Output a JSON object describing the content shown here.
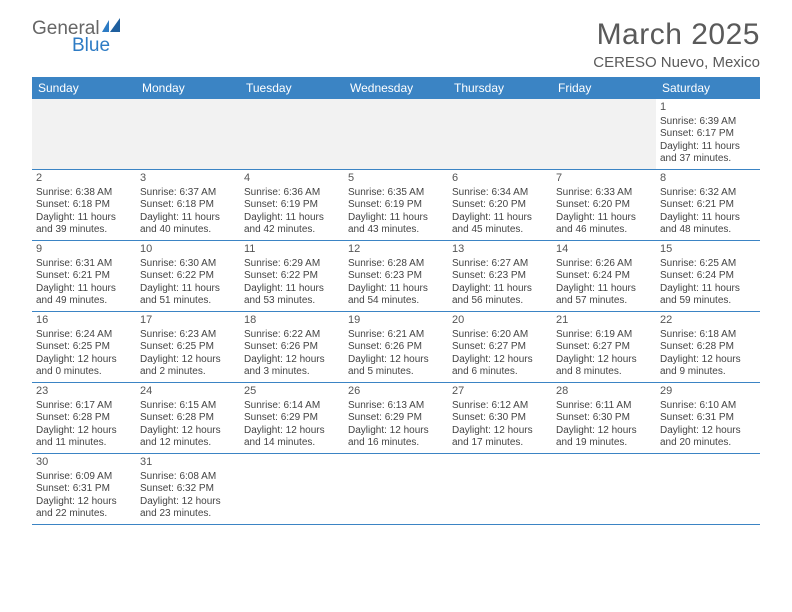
{
  "logo": {
    "line1": "General",
    "line2": "Blue"
  },
  "title": "March 2025",
  "location": "CERESO Nuevo, Mexico",
  "colors": {
    "header_bg": "#3b84c4",
    "header_text": "#ffffff",
    "border": "#3b84c4",
    "daynum": "#555555",
    "body_text": "#444444",
    "title_text": "#5a5a5a",
    "blank_gray": "#f2f2f2"
  },
  "weekdays": [
    "Sunday",
    "Monday",
    "Tuesday",
    "Wednesday",
    "Thursday",
    "Friday",
    "Saturday"
  ],
  "weeks": [
    [
      {
        "blank": true,
        "shade": "gray"
      },
      {
        "blank": true,
        "shade": "gray"
      },
      {
        "blank": true,
        "shade": "gray"
      },
      {
        "blank": true,
        "shade": "gray"
      },
      {
        "blank": true,
        "shade": "gray"
      },
      {
        "blank": true,
        "shade": "gray"
      },
      {
        "n": "1",
        "sunrise": "6:39 AM",
        "sunset": "6:17 PM",
        "daylight": "11 hours and 37 minutes."
      }
    ],
    [
      {
        "n": "2",
        "sunrise": "6:38 AM",
        "sunset": "6:18 PM",
        "daylight": "11 hours and 39 minutes."
      },
      {
        "n": "3",
        "sunrise": "6:37 AM",
        "sunset": "6:18 PM",
        "daylight": "11 hours and 40 minutes."
      },
      {
        "n": "4",
        "sunrise": "6:36 AM",
        "sunset": "6:19 PM",
        "daylight": "11 hours and 42 minutes."
      },
      {
        "n": "5",
        "sunrise": "6:35 AM",
        "sunset": "6:19 PM",
        "daylight": "11 hours and 43 minutes."
      },
      {
        "n": "6",
        "sunrise": "6:34 AM",
        "sunset": "6:20 PM",
        "daylight": "11 hours and 45 minutes."
      },
      {
        "n": "7",
        "sunrise": "6:33 AM",
        "sunset": "6:20 PM",
        "daylight": "11 hours and 46 minutes."
      },
      {
        "n": "8",
        "sunrise": "6:32 AM",
        "sunset": "6:21 PM",
        "daylight": "11 hours and 48 minutes."
      }
    ],
    [
      {
        "n": "9",
        "sunrise": "6:31 AM",
        "sunset": "6:21 PM",
        "daylight": "11 hours and 49 minutes."
      },
      {
        "n": "10",
        "sunrise": "6:30 AM",
        "sunset": "6:22 PM",
        "daylight": "11 hours and 51 minutes."
      },
      {
        "n": "11",
        "sunrise": "6:29 AM",
        "sunset": "6:22 PM",
        "daylight": "11 hours and 53 minutes."
      },
      {
        "n": "12",
        "sunrise": "6:28 AM",
        "sunset": "6:23 PM",
        "daylight": "11 hours and 54 minutes."
      },
      {
        "n": "13",
        "sunrise": "6:27 AM",
        "sunset": "6:23 PM",
        "daylight": "11 hours and 56 minutes."
      },
      {
        "n": "14",
        "sunrise": "6:26 AM",
        "sunset": "6:24 PM",
        "daylight": "11 hours and 57 minutes."
      },
      {
        "n": "15",
        "sunrise": "6:25 AM",
        "sunset": "6:24 PM",
        "daylight": "11 hours and 59 minutes."
      }
    ],
    [
      {
        "n": "16",
        "sunrise": "6:24 AM",
        "sunset": "6:25 PM",
        "daylight": "12 hours and 0 minutes."
      },
      {
        "n": "17",
        "sunrise": "6:23 AM",
        "sunset": "6:25 PM",
        "daylight": "12 hours and 2 minutes."
      },
      {
        "n": "18",
        "sunrise": "6:22 AM",
        "sunset": "6:26 PM",
        "daylight": "12 hours and 3 minutes."
      },
      {
        "n": "19",
        "sunrise": "6:21 AM",
        "sunset": "6:26 PM",
        "daylight": "12 hours and 5 minutes."
      },
      {
        "n": "20",
        "sunrise": "6:20 AM",
        "sunset": "6:27 PM",
        "daylight": "12 hours and 6 minutes."
      },
      {
        "n": "21",
        "sunrise": "6:19 AM",
        "sunset": "6:27 PM",
        "daylight": "12 hours and 8 minutes."
      },
      {
        "n": "22",
        "sunrise": "6:18 AM",
        "sunset": "6:28 PM",
        "daylight": "12 hours and 9 minutes."
      }
    ],
    [
      {
        "n": "23",
        "sunrise": "6:17 AM",
        "sunset": "6:28 PM",
        "daylight": "12 hours and 11 minutes."
      },
      {
        "n": "24",
        "sunrise": "6:15 AM",
        "sunset": "6:28 PM",
        "daylight": "12 hours and 12 minutes."
      },
      {
        "n": "25",
        "sunrise": "6:14 AM",
        "sunset": "6:29 PM",
        "daylight": "12 hours and 14 minutes."
      },
      {
        "n": "26",
        "sunrise": "6:13 AM",
        "sunset": "6:29 PM",
        "daylight": "12 hours and 16 minutes."
      },
      {
        "n": "27",
        "sunrise": "6:12 AM",
        "sunset": "6:30 PM",
        "daylight": "12 hours and 17 minutes."
      },
      {
        "n": "28",
        "sunrise": "6:11 AM",
        "sunset": "6:30 PM",
        "daylight": "12 hours and 19 minutes."
      },
      {
        "n": "29",
        "sunrise": "6:10 AM",
        "sunset": "6:31 PM",
        "daylight": "12 hours and 20 minutes."
      }
    ],
    [
      {
        "n": "30",
        "sunrise": "6:09 AM",
        "sunset": "6:31 PM",
        "daylight": "12 hours and 22 minutes."
      },
      {
        "n": "31",
        "sunrise": "6:08 AM",
        "sunset": "6:32 PM",
        "daylight": "12 hours and 23 minutes."
      },
      {
        "blank": true,
        "shade": "white"
      },
      {
        "blank": true,
        "shade": "white"
      },
      {
        "blank": true,
        "shade": "white"
      },
      {
        "blank": true,
        "shade": "white"
      },
      {
        "blank": true,
        "shade": "white"
      }
    ]
  ],
  "labels": {
    "sunrise": "Sunrise: ",
    "sunset": "Sunset: ",
    "daylight": "Daylight: "
  }
}
